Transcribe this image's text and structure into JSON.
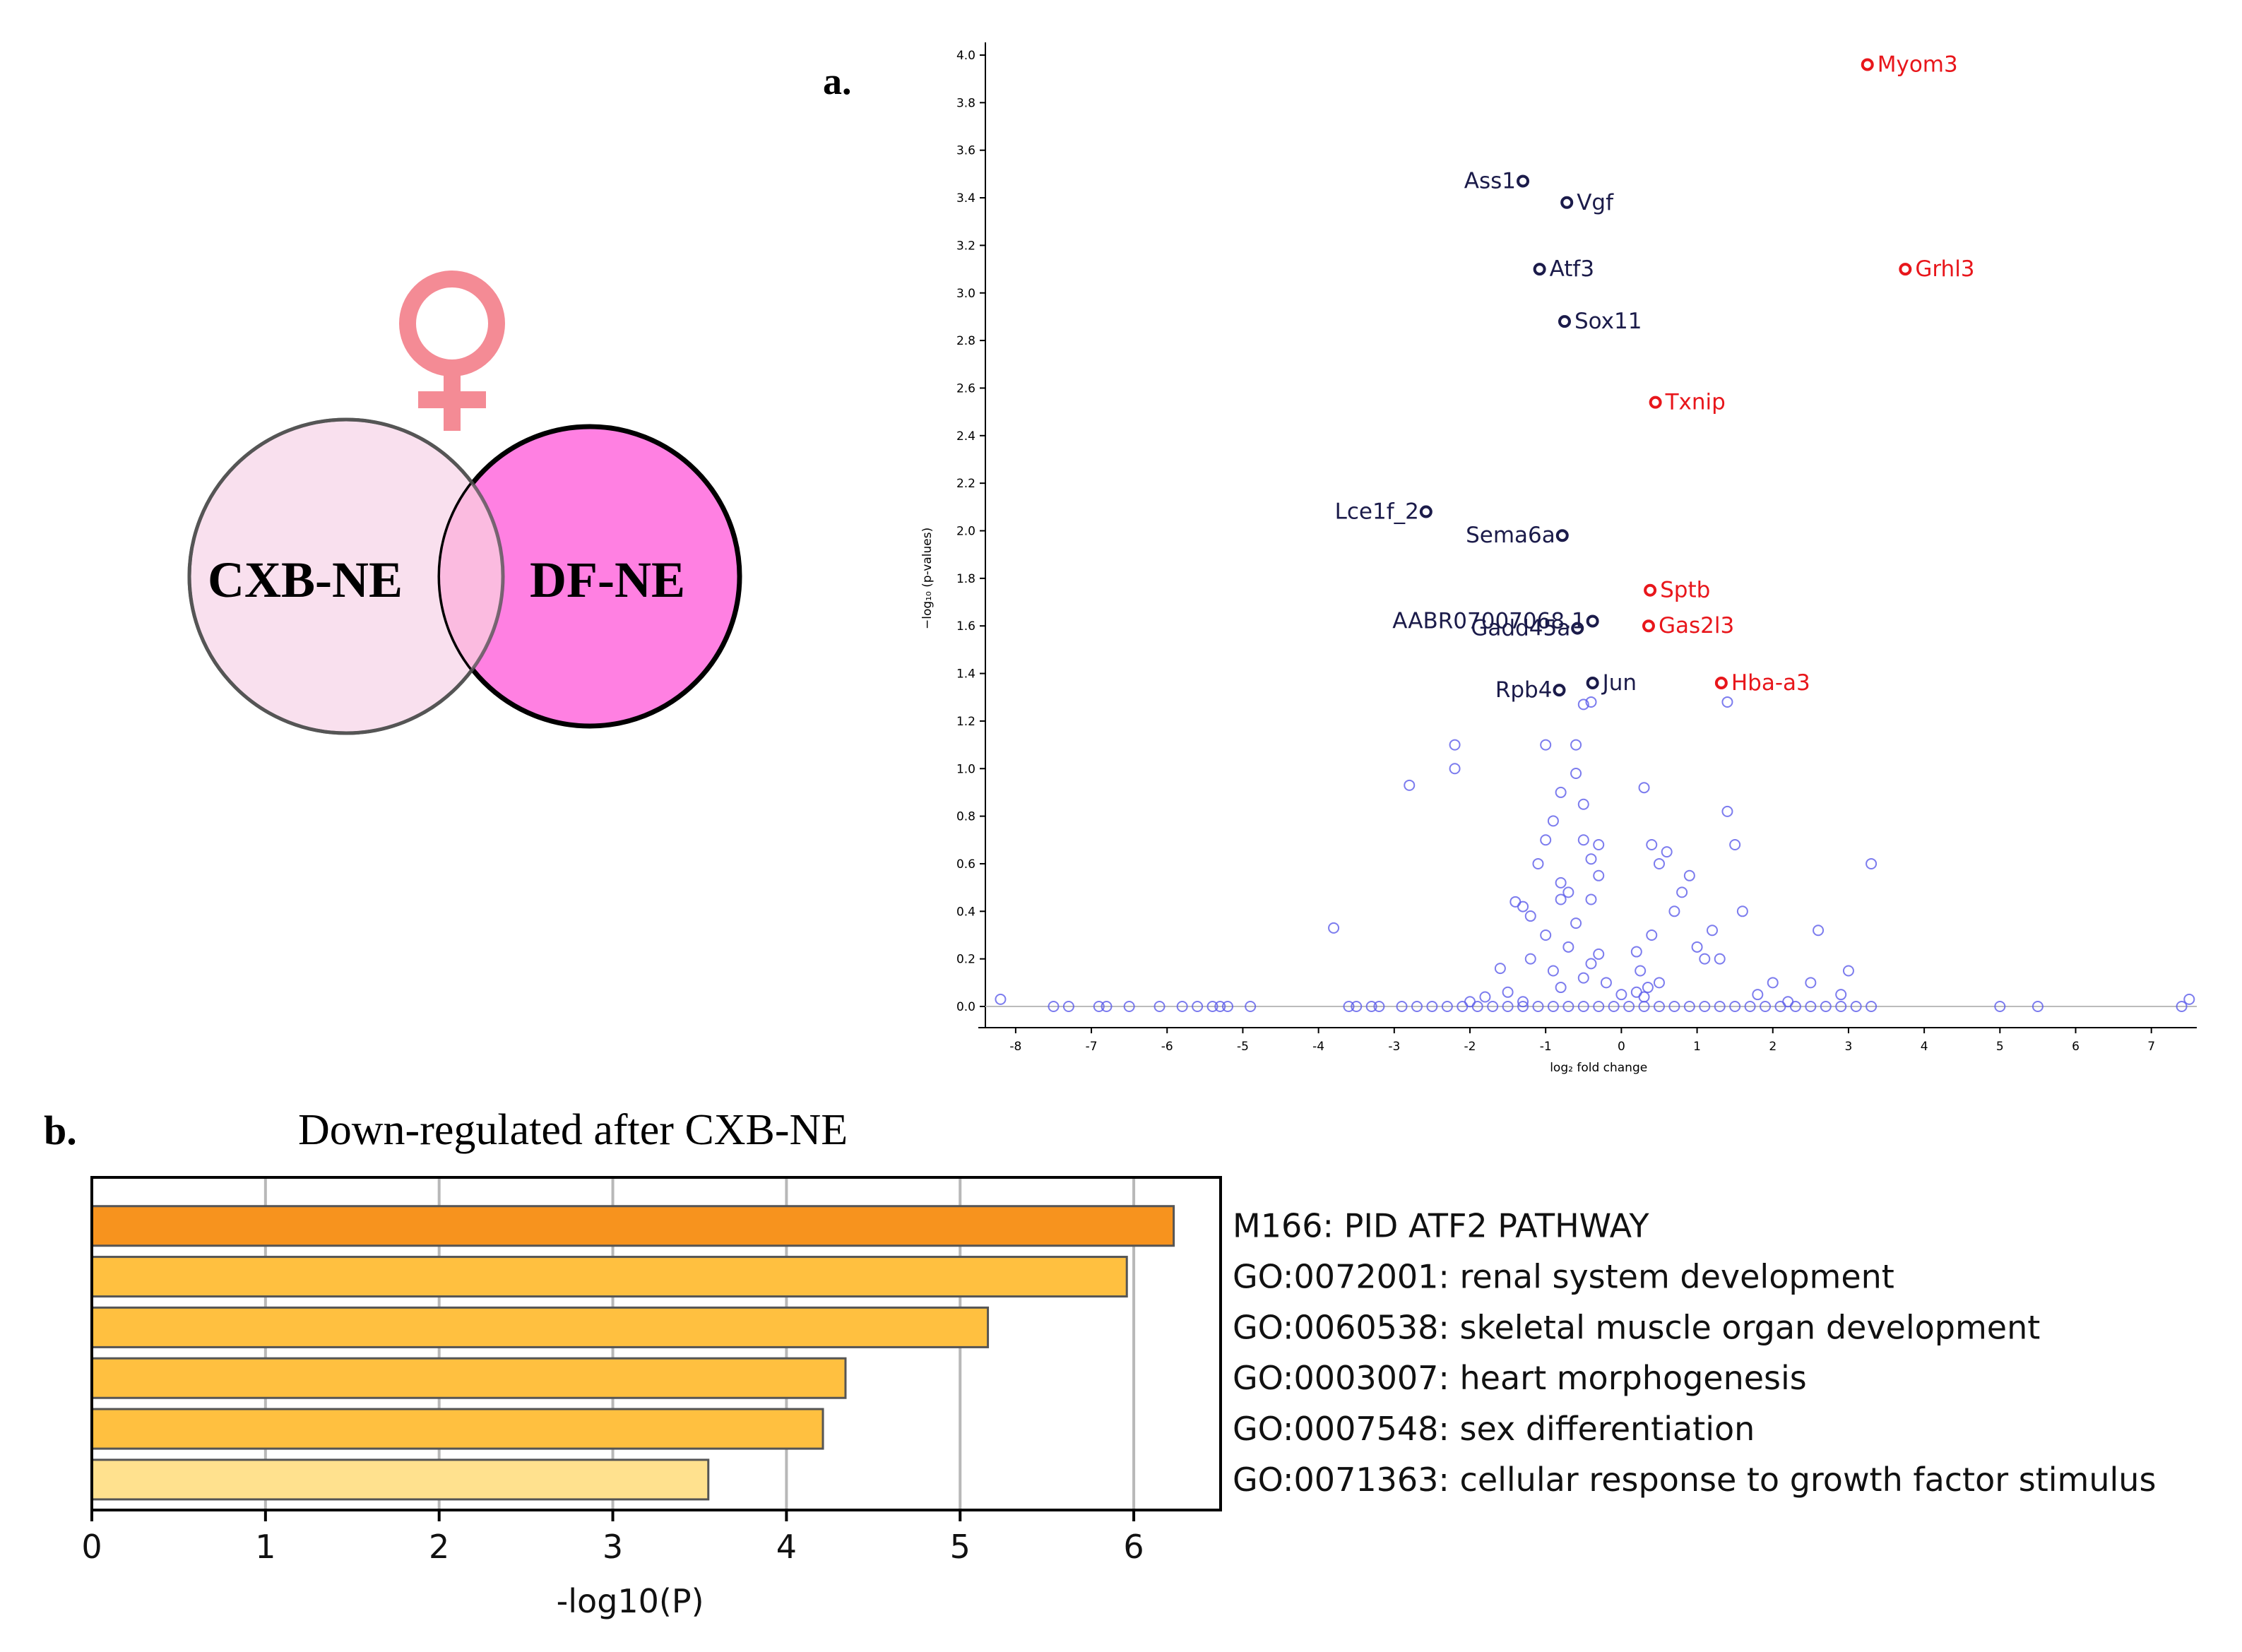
{
  "venn": {
    "left_label": "CXB-NE",
    "right_label": "DF-NE",
    "left_color": "#f9e0ee",
    "right_color": "#ff80e2",
    "overlap_color": "#fbbbe0",
    "symbol_color": "#f48b95",
    "symbol": "female-symbol"
  },
  "panel_labels": {
    "a": "a.",
    "b": "b."
  },
  "chart_data": [
    {
      "type": "scatter",
      "subtype": "volcano",
      "xlabel": "log₂ fold change",
      "ylabel": "−log₁₀ (p-values)",
      "xlim": [
        -8.4,
        7.6
      ],
      "ylim": [
        0,
        4.0
      ],
      "xticks": [
        -8,
        -7,
        -6,
        -5,
        -4,
        -3,
        -2,
        -1,
        0,
        1,
        2,
        3,
        4,
        5,
        6,
        7
      ],
      "yticks": [
        0.0,
        0.2,
        0.4,
        0.6,
        0.8,
        1.0,
        1.2,
        1.4,
        1.6,
        1.8,
        2.0,
        2.2,
        2.4,
        2.6,
        2.8,
        3.0,
        3.2,
        3.4,
        3.6,
        3.8,
        4.0
      ],
      "colors": {
        "up": "#e8161b",
        "down": "#1b1b4a",
        "background": "#5b5bea"
      },
      "labeled_genes": [
        {
          "gene": "Myom3",
          "x": 3.25,
          "y": 3.96,
          "group": "up"
        },
        {
          "gene": "Grhl3",
          "x": 3.75,
          "y": 3.1,
          "group": "up"
        },
        {
          "gene": "Txnip",
          "x": 0.45,
          "y": 2.54,
          "group": "up"
        },
        {
          "gene": "Sptb",
          "x": 0.38,
          "y": 1.75,
          "group": "up"
        },
        {
          "gene": "Gas2l3",
          "x": 0.36,
          "y": 1.6,
          "group": "up"
        },
        {
          "gene": "Hba-a3",
          "x": 1.32,
          "y": 1.36,
          "group": "up"
        },
        {
          "gene": "Ass1",
          "x": -1.3,
          "y": 3.47,
          "group": "down"
        },
        {
          "gene": "Vgf",
          "x": -0.72,
          "y": 3.38,
          "group": "down"
        },
        {
          "gene": "Atf3",
          "x": -1.08,
          "y": 3.1,
          "group": "down"
        },
        {
          "gene": "Sox11",
          "x": -0.75,
          "y": 2.88,
          "group": "down"
        },
        {
          "gene": "Lce1f_2",
          "x": -2.58,
          "y": 2.08,
          "group": "down"
        },
        {
          "gene": "Sema6a",
          "x": -0.78,
          "y": 1.98,
          "group": "down"
        },
        {
          "gene": "AABR07007068.1",
          "x": -0.38,
          "y": 1.62,
          "group": "down"
        },
        {
          "gene": "Gadd45a",
          "x": -0.58,
          "y": 1.59,
          "group": "down"
        },
        {
          "gene": "Jun",
          "x": -0.38,
          "y": 1.36,
          "group": "down"
        },
        {
          "gene": "Rpb4",
          "x": -0.82,
          "y": 1.33,
          "group": "down"
        }
      ],
      "background_points": [
        [
          -8.2,
          0.03
        ],
        [
          -7.5,
          0.0
        ],
        [
          -7.3,
          0.0
        ],
        [
          -6.9,
          0.0
        ],
        [
          -6.8,
          0.0
        ],
        [
          -6.5,
          0.0
        ],
        [
          -6.1,
          0.0
        ],
        [
          -5.8,
          0.0
        ],
        [
          -5.6,
          0.0
        ],
        [
          -5.4,
          0.0
        ],
        [
          -5.3,
          0.0
        ],
        [
          -5.2,
          0.0
        ],
        [
          -4.9,
          0.0
        ],
        [
          -3.6,
          0.0
        ],
        [
          -3.5,
          0.0
        ],
        [
          -3.3,
          0.0
        ],
        [
          -3.2,
          0.0
        ],
        [
          -2.9,
          0.0
        ],
        [
          -2.7,
          0.0
        ],
        [
          -2.5,
          0.0
        ],
        [
          -2.3,
          0.0
        ],
        [
          -2.1,
          0.0
        ],
        [
          -1.9,
          0.0
        ],
        [
          -1.7,
          0.0
        ],
        [
          -1.5,
          0.0
        ],
        [
          -1.3,
          0.0
        ],
        [
          -1.1,
          0.0
        ],
        [
          -0.9,
          0.0
        ],
        [
          -0.7,
          0.0
        ],
        [
          -0.5,
          0.0
        ],
        [
          -0.3,
          0.0
        ],
        [
          -0.1,
          0.0
        ],
        [
          0.1,
          0.0
        ],
        [
          0.3,
          0.0
        ],
        [
          0.5,
          0.0
        ],
        [
          0.7,
          0.0
        ],
        [
          0.9,
          0.0
        ],
        [
          1.1,
          0.0
        ],
        [
          1.3,
          0.0
        ],
        [
          1.5,
          0.0
        ],
        [
          1.7,
          0.0
        ],
        [
          1.9,
          0.0
        ],
        [
          2.1,
          0.0
        ],
        [
          2.3,
          0.0
        ],
        [
          2.5,
          0.0
        ],
        [
          2.7,
          0.0
        ],
        [
          2.9,
          0.0
        ],
        [
          3.1,
          0.0
        ],
        [
          3.3,
          0.0
        ],
        [
          5.0,
          0.0
        ],
        [
          5.5,
          0.0
        ],
        [
          7.4,
          0.0
        ],
        [
          7.5,
          0.03
        ],
        [
          -3.8,
          0.33
        ],
        [
          -2.8,
          0.93
        ],
        [
          -2.2,
          1.1
        ],
        [
          -2.2,
          1.0
        ],
        [
          -1.4,
          0.44
        ],
        [
          -1.3,
          0.42
        ],
        [
          -1.2,
          0.38
        ],
        [
          -1.1,
          0.6
        ],
        [
          -1.0,
          0.7
        ],
        [
          -1.0,
          1.1
        ],
        [
          -0.9,
          0.78
        ],
        [
          -0.8,
          0.9
        ],
        [
          -0.8,
          0.52
        ],
        [
          -0.7,
          0.48
        ],
        [
          -0.6,
          1.1
        ],
        [
          -0.6,
          0.98
        ],
        [
          -0.5,
          0.85
        ],
        [
          -0.5,
          0.7
        ],
        [
          -0.4,
          0.62
        ],
        [
          -0.4,
          0.45
        ],
        [
          -0.3,
          0.68
        ],
        [
          -0.3,
          0.55
        ],
        [
          -0.4,
          1.28
        ],
        [
          -0.5,
          1.27
        ],
        [
          -1.2,
          0.2
        ],
        [
          -1.0,
          0.3
        ],
        [
          -0.9,
          0.15
        ],
        [
          -0.7,
          0.25
        ],
        [
          -0.6,
          0.35
        ],
        [
          -0.5,
          0.12
        ],
        [
          -0.4,
          0.18
        ],
        [
          -0.3,
          0.22
        ],
        [
          -0.2,
          0.1
        ],
        [
          -0.8,
          0.08
        ],
        [
          -1.5,
          0.06
        ],
        [
          -1.8,
          0.04
        ],
        [
          -2.0,
          0.02
        ],
        [
          -1.6,
          0.16
        ],
        [
          0.2,
          0.23
        ],
        [
          0.25,
          0.15
        ],
        [
          0.3,
          0.92
        ],
        [
          0.35,
          0.08
        ],
        [
          0.4,
          0.68
        ],
        [
          0.5,
          0.6
        ],
        [
          0.6,
          0.65
        ],
        [
          0.7,
          0.4
        ],
        [
          0.8,
          0.48
        ],
        [
          0.9,
          0.55
        ],
        [
          1.0,
          0.25
        ],
        [
          1.1,
          0.2
        ],
        [
          1.2,
          0.32
        ],
        [
          1.3,
          0.2
        ],
        [
          1.4,
          0.82
        ],
        [
          1.5,
          0.68
        ],
        [
          1.6,
          0.4
        ],
        [
          0.4,
          0.3
        ],
        [
          0.5,
          0.1
        ],
        [
          0.2,
          0.06
        ],
        [
          0.3,
          0.04
        ],
        [
          1.4,
          1.28
        ],
        [
          1.8,
          0.05
        ],
        [
          2.0,
          0.1
        ],
        [
          2.2,
          0.02
        ],
        [
          2.5,
          0.1
        ],
        [
          2.6,
          0.32
        ],
        [
          2.9,
          0.05
        ],
        [
          3.0,
          0.15
        ],
        [
          3.3,
          0.6
        ],
        [
          -1.3,
          0.02
        ],
        [
          -0.8,
          0.45
        ],
        [
          0.0,
          0.05
        ]
      ]
    },
    {
      "type": "bar",
      "orientation": "horizontal",
      "title": "Down-regulated after CXB-NE",
      "xlabel": "-log10(P)",
      "xlim": [
        0,
        6.5
      ],
      "xticks": [
        0,
        1,
        2,
        3,
        4,
        5,
        6
      ],
      "grid": true,
      "categories": [
        "M166: PID ATF2 PATHWAY",
        "GO:0072001: renal system development",
        "GO:0060538: skeletal muscle organ development",
        "GO:0003007: heart morphogenesis",
        "GO:0007548: sex differentiation",
        "GO:0071363: cellular response to growth factor stimulus"
      ],
      "values": [
        6.23,
        5.96,
        5.16,
        4.34,
        4.21,
        3.55
      ],
      "bar_colors": [
        "#f7931e",
        "#ffc040",
        "#ffc040",
        "#ffc040",
        "#ffc040",
        "#ffe18e"
      ]
    }
  ]
}
